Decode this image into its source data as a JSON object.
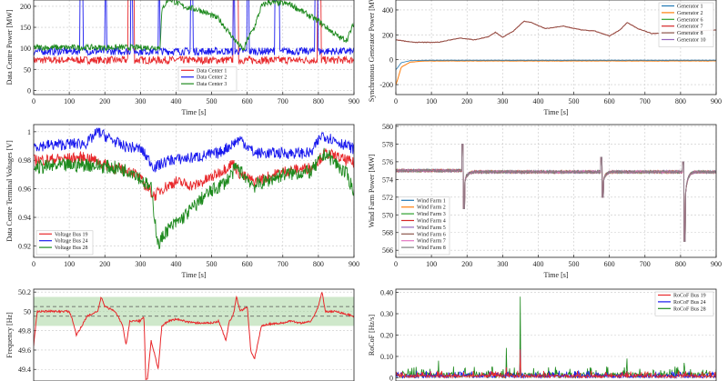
{
  "chart_data": [
    {
      "id": "p1",
      "type": "line",
      "ylabel": "Data Centre Power [MW]",
      "xlabel": "Time [s]",
      "xlim": [
        0,
        900
      ],
      "ylim": [
        -10,
        215
      ],
      "xticks": [
        0,
        100,
        200,
        300,
        400,
        500,
        600,
        700,
        800,
        900
      ],
      "yticks": [
        0,
        50,
        100,
        150,
        200
      ],
      "grid": true,
      "legend_position": "lower-center",
      "series": [
        {
          "name": "Data Center 1",
          "color": "#e8282b",
          "base": 72,
          "noise": 9,
          "pulses": [
            [
              265,
              282,
              200
            ],
            [
              560,
              575,
              200
            ],
            [
              797,
              808,
              200
            ]
          ]
        },
        {
          "name": "Data Center 2",
          "color": "#1a1aee",
          "base": 93,
          "noise": 9,
          "pulses": [
            [
              130,
              138,
              200
            ],
            [
              200,
              205,
              200
            ],
            [
              272,
              278,
              200
            ],
            [
              350,
              355,
              200
            ],
            [
              440,
              448,
              200
            ],
            [
              560,
              565,
              200
            ],
            [
              600,
              605,
              200
            ],
            [
              678,
              690,
              200
            ],
            [
              790,
              798,
              200
            ]
          ]
        },
        {
          "name": "Data Center 3",
          "color": "#1e8a1e",
          "base": 100,
          "noise": 7,
          "knots": [
            [
              0,
              102
            ],
            [
              355,
              102
            ],
            [
              360,
              185
            ],
            [
              365,
              200
            ],
            [
              380,
              218
            ],
            [
              420,
              200
            ],
            [
              470,
              190
            ],
            [
              520,
              170
            ],
            [
              565,
              120
            ],
            [
              590,
              95
            ],
            [
              600,
              120
            ],
            [
              620,
              150
            ],
            [
              640,
              200
            ],
            [
              660,
              210
            ],
            [
              720,
              205
            ],
            [
              800,
              165
            ],
            [
              860,
              125
            ],
            [
              880,
              120
            ],
            [
              900,
              160
            ]
          ]
        }
      ]
    },
    {
      "id": "p2",
      "type": "line",
      "ylabel": "Synchronous Generator Power [MW]",
      "xlabel": "Time [s]",
      "xlim": [
        0,
        900
      ],
      "ylim": [
        -280,
        480
      ],
      "xticks": [
        0,
        100,
        200,
        300,
        400,
        500,
        600,
        700,
        800,
        900
      ],
      "yticks": [
        -200,
        0,
        200,
        400
      ],
      "grid": true,
      "legend_position": "top-right",
      "series": [
        {
          "name": "Generator 1",
          "color": "#1f77b4"
        },
        {
          "name": "Generator 2",
          "color": "#ff7f0e"
        },
        {
          "name": "Generator 6",
          "color": "#2ca02c"
        },
        {
          "name": "Generator 7",
          "color": "#d62728"
        },
        {
          "name": "Generator 8",
          "color": "#8c564b"
        },
        {
          "name": "Generator 10",
          "color": "#9467bd"
        }
      ],
      "upper_knots": [
        [
          0,
          160
        ],
        [
          50,
          140
        ],
        [
          120,
          140
        ],
        [
          180,
          175
        ],
        [
          220,
          160
        ],
        [
          260,
          185
        ],
        [
          280,
          220
        ],
        [
          300,
          180
        ],
        [
          330,
          230
        ],
        [
          360,
          310
        ],
        [
          380,
          300
        ],
        [
          420,
          250
        ],
        [
          470,
          270
        ],
        [
          520,
          240
        ],
        [
          560,
          230
        ],
        [
          600,
          190
        ],
        [
          630,
          240
        ],
        [
          650,
          300
        ],
        [
          680,
          250
        ],
        [
          720,
          210
        ],
        [
          800,
          225
        ],
        [
          900,
          240
        ]
      ],
      "lower_knots": [
        [
          0,
          -200
        ],
        [
          6,
          -150
        ],
        [
          15,
          -60
        ],
        [
          40,
          -20
        ],
        [
          80,
          -10
        ],
        [
          900,
          -10
        ]
      ]
    },
    {
      "id": "p3",
      "type": "line",
      "ylabel": "Data Centre Terminal Voltages [V]",
      "xlabel": "Time [s]",
      "xlim": [
        0,
        900
      ],
      "ylim": [
        0.912,
        1.005
      ],
      "xticks": [
        0,
        100,
        200,
        300,
        400,
        500,
        600,
        700,
        800,
        900
      ],
      "yticks": [
        0.92,
        0.94,
        0.96,
        0.98,
        1.0
      ],
      "grid": true,
      "legend_position": "lower-left",
      "series": [
        {
          "name": "Voltage Bus 19",
          "color": "#e8282b",
          "noise": 0.004,
          "knots": [
            [
              0,
              0.98
            ],
            [
              150,
              0.982
            ],
            [
              220,
              0.975
            ],
            [
              280,
              0.972
            ],
            [
              340,
              0.955
            ],
            [
              360,
              0.96
            ],
            [
              400,
              0.965
            ],
            [
              450,
              0.962
            ],
            [
              500,
              0.968
            ],
            [
              560,
              0.978
            ],
            [
              580,
              0.97
            ],
            [
              620,
              0.965
            ],
            [
              700,
              0.972
            ],
            [
              780,
              0.975
            ],
            [
              820,
              0.985
            ],
            [
              900,
              0.978
            ]
          ]
        },
        {
          "name": "Voltage Bus 24",
          "color": "#1a1aee",
          "noise": 0.004,
          "knots": [
            [
              0,
              0.99
            ],
            [
              150,
              0.992
            ],
            [
              180,
              1.0
            ],
            [
              250,
              0.99
            ],
            [
              300,
              0.988
            ],
            [
              340,
              0.975
            ],
            [
              380,
              0.98
            ],
            [
              450,
              0.982
            ],
            [
              520,
              0.985
            ],
            [
              580,
              0.995
            ],
            [
              620,
              0.985
            ],
            [
              700,
              0.985
            ],
            [
              780,
              0.985
            ],
            [
              810,
              0.998
            ],
            [
              900,
              0.988
            ]
          ]
        },
        {
          "name": "Voltage Bus 28",
          "color": "#1e8a1e",
          "noise": 0.005,
          "knots": [
            [
              0,
              0.975
            ],
            [
              150,
              0.977
            ],
            [
              220,
              0.975
            ],
            [
              280,
              0.972
            ],
            [
              330,
              0.96
            ],
            [
              350,
              0.92
            ],
            [
              370,
              0.93
            ],
            [
              420,
              0.94
            ],
            [
              480,
              0.955
            ],
            [
              540,
              0.965
            ],
            [
              570,
              0.975
            ],
            [
              620,
              0.962
            ],
            [
              700,
              0.97
            ],
            [
              780,
              0.972
            ],
            [
              820,
              0.985
            ],
            [
              880,
              0.97
            ],
            [
              900,
              0.958
            ]
          ]
        }
      ]
    },
    {
      "id": "p4",
      "type": "line",
      "ylabel": "Wind Farm Power [MW]",
      "xlabel": "Time [s]",
      "xlim": [
        0,
        900
      ],
      "ylim": [
        565.2,
        580.2
      ],
      "xticks": [
        0,
        100,
        200,
        300,
        400,
        500,
        600,
        700,
        800,
        900
      ],
      "yticks": [
        566,
        568,
        570,
        572,
        574,
        576,
        578,
        580
      ],
      "grid": true,
      "legend_position": "lower-left",
      "series": [
        {
          "name": "Wind Farm 1",
          "color": "#1f77b4"
        },
        {
          "name": "Wind Farm 2",
          "color": "#ff7f0e"
        },
        {
          "name": "Wind Farm 3",
          "color": "#2ca02c"
        },
        {
          "name": "Wind Farm 4",
          "color": "#d62728"
        },
        {
          "name": "Wind Farm 5",
          "color": "#9467bd"
        },
        {
          "name": "Wind Farm 6",
          "color": "#8c564b"
        },
        {
          "name": "Wind Farm 7",
          "color": "#e377c2"
        },
        {
          "name": "Wind Farm 8",
          "color": "#7f7f7f"
        }
      ],
      "baseline": 575.0,
      "events": [
        [
          190,
          578.0,
          570.7
        ],
        [
          580,
          576.5,
          572.0
        ],
        [
          810,
          576.0,
          567.0
        ]
      ]
    },
    {
      "id": "p5",
      "type": "line",
      "ylabel": "Frequency [Hz]",
      "xlabel": "",
      "xlim": [
        0,
        900
      ],
      "ylim": [
        49.28,
        50.23
      ],
      "xticks": [],
      "yticks": [
        49.4,
        49.6,
        49.8,
        50.0,
        50.2
      ],
      "grid": true,
      "legend_position": "none",
      "band": [
        49.85,
        50.15
      ],
      "dashed_lines": [
        50.05,
        49.95
      ],
      "series": [
        {
          "name": "Frequency",
          "color": "#e8282b",
          "knots": [
            [
              0,
              49.65
            ],
            [
              10,
              50.0
            ],
            [
              100,
              50.0
            ],
            [
              110,
              49.9
            ],
            [
              120,
              49.75
            ],
            [
              150,
              49.95
            ],
            [
              180,
              50.0
            ],
            [
              190,
              50.15
            ],
            [
              200,
              50.05
            ],
            [
              230,
              50.0
            ],
            [
              250,
              49.85
            ],
            [
              260,
              49.65
            ],
            [
              270,
              49.9
            ],
            [
              300,
              49.9
            ],
            [
              310,
              49.95
            ],
            [
              315,
              49.3
            ],
            [
              320,
              49.3
            ],
            [
              330,
              49.7
            ],
            [
              340,
              49.55
            ],
            [
              350,
              49.4
            ],
            [
              360,
              49.85
            ],
            [
              380,
              49.9
            ],
            [
              400,
              49.92
            ],
            [
              450,
              49.88
            ],
            [
              500,
              49.88
            ],
            [
              520,
              49.9
            ],
            [
              540,
              49.7
            ],
            [
              550,
              49.9
            ],
            [
              560,
              49.95
            ],
            [
              570,
              50.15
            ],
            [
              580,
              50.0
            ],
            [
              600,
              50.05
            ],
            [
              610,
              49.6
            ],
            [
              620,
              49.5
            ],
            [
              640,
              49.85
            ],
            [
              660,
              49.87
            ],
            [
              700,
              49.88
            ],
            [
              720,
              49.9
            ],
            [
              750,
              49.88
            ],
            [
              780,
              49.9
            ],
            [
              800,
              50.05
            ],
            [
              810,
              50.2
            ],
            [
              820,
              50.0
            ],
            [
              850,
              50.0
            ],
            [
              900,
              49.95
            ]
          ]
        }
      ]
    },
    {
      "id": "p6",
      "type": "line",
      "ylabel": "RoCoF [Hz/s]",
      "xlabel": "",
      "xlim": [
        0,
        900
      ],
      "ylim": [
        -0.015,
        0.415
      ],
      "xticks": [],
      "yticks": [
        0.0,
        0.1,
        0.2,
        0.3,
        0.4
      ],
      "grid": true,
      "legend_position": "top-right",
      "series": [
        {
          "name": "RoCoF Bus 19",
          "color": "#e8282b"
        },
        {
          "name": "RoCoF Bus 24",
          "color": "#1a1aee"
        },
        {
          "name": "RoCoF Bus 28",
          "color": "#1e8a1e"
        }
      ],
      "spikes": [
        [
          350,
          0.38
        ],
        [
          310,
          0.14
        ],
        [
          120,
          0.08
        ],
        [
          650,
          0.09
        ],
        [
          810,
          0.07
        ]
      ]
    }
  ]
}
